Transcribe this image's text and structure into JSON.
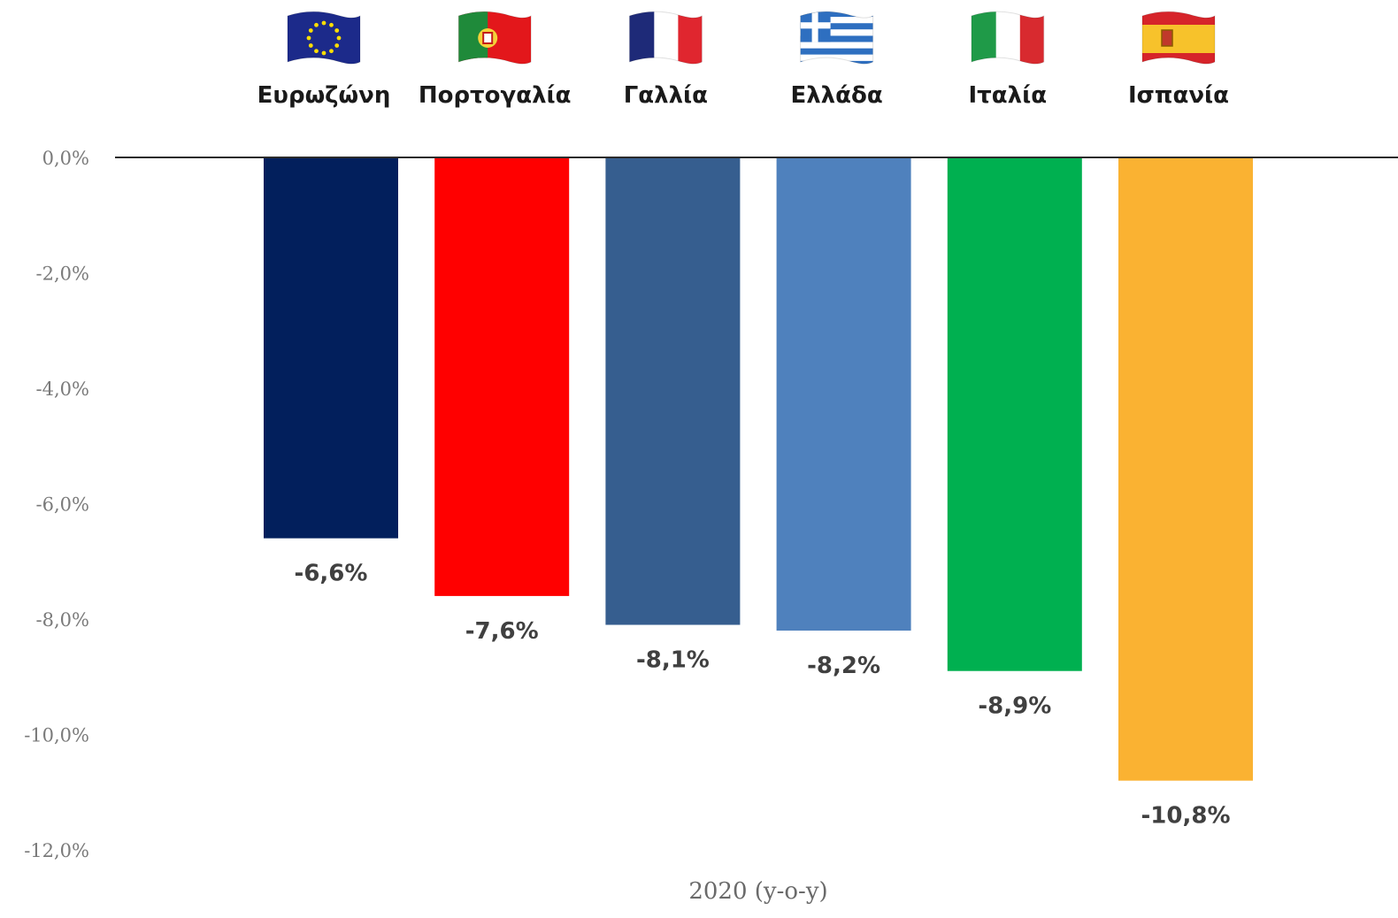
{
  "chart_data": {
    "type": "bar",
    "categories": [
      "Ευρωζώνη",
      "Πορτογαλία",
      "Γαλλία",
      "Ελλάδα",
      "Ιταλία",
      "Ισπανία"
    ],
    "values": [
      -6.6,
      -7.6,
      -8.1,
      -8.2,
      -8.9,
      -10.8
    ],
    "data_labels": [
      "-6,6%",
      "-7,6%",
      "-8,1%",
      "-8,2%",
      "-8,9%",
      "-10,8%"
    ],
    "bar_colors": [
      "#021f5c",
      "#ff0000",
      "#365e8f",
      "#4f81bd",
      "#00b050",
      "#fab232"
    ],
    "flag_icons": [
      "eu-flag-icon",
      "portugal-flag-icon",
      "france-flag-icon",
      "greece-flag-icon",
      "italy-flag-icon",
      "spain-flag-icon"
    ],
    "xlabel": "2020 (y-o-y)",
    "ylabel": "",
    "ylim": [
      -12,
      0
    ],
    "yticks": [
      0,
      -2,
      -4,
      -6,
      -8,
      -10,
      -12
    ],
    "ytick_labels": [
      "0,0%",
      "-2,0%",
      "-4,0%",
      "-6,0%",
      "-8,0%",
      "-10,0%",
      "-12,0%"
    ],
    "grid": false,
    "legend": "none",
    "category_label_position": "top"
  }
}
